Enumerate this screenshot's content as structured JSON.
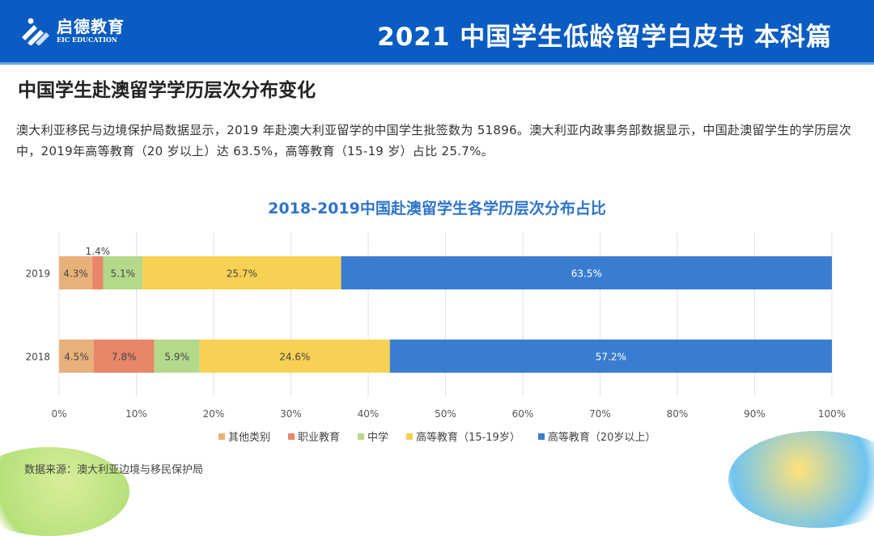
{
  "header": {
    "logo_cn": "启德教育",
    "logo_en": "EIC EDUCATION",
    "title": "2021 中国学生低龄留学白皮书 本科篇"
  },
  "page_title": "中国学生赴澳留学学历层次分布变化",
  "description": "澳大利亚移民与边境保护局数据显示，2019 年赴澳大利亚留学的中国学生批签数为 51896。澳大利亚内政事务部数据显示，中国赴澳留学生的学历层次中，2019年高等教育（20 岁以上）达 63.5%，高等教育（15-19 岁）占比 25.7%。",
  "source": "数据来源：澳大利亚边境与移民保护局",
  "chart_data": {
    "type": "bar",
    "orientation": "horizontal-stacked-100",
    "title": "2018-2019中国赴澳留学生各学历层次分布占比",
    "categories": [
      "2019",
      "2018"
    ],
    "series": [
      {
        "name": "其他类别",
        "color": "#e8b07a",
        "values": [
          4.3,
          4.5
        ]
      },
      {
        "name": "职业教育",
        "color": "#e8866a",
        "values": [
          1.4,
          7.8
        ]
      },
      {
        "name": "中学",
        "color": "#b5d98a",
        "values": [
          5.1,
          5.9
        ]
      },
      {
        "name": "高等教育（15-19岁）",
        "color": "#f7d154",
        "values": [
          25.7,
          24.6
        ]
      },
      {
        "name": "高等教育（20岁以上）",
        "color": "#3a7dd0",
        "values": [
          63.5,
          57.2
        ]
      }
    ],
    "xticks": [
      "0%",
      "10%",
      "20%",
      "30%",
      "40%",
      "50%",
      "60%",
      "70%",
      "80%",
      "90%",
      "100%"
    ],
    "xlim": [
      0,
      100
    ],
    "legend": "bottom",
    "grid": true
  }
}
